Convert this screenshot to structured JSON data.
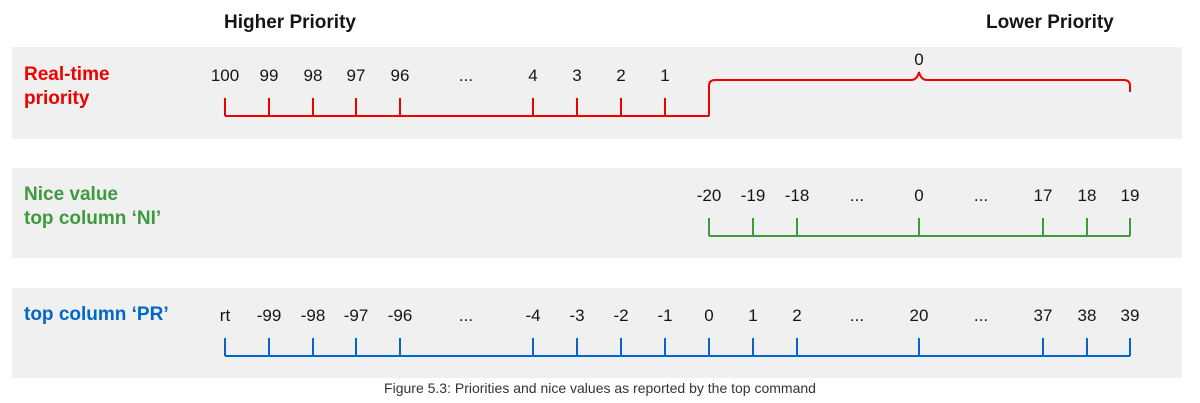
{
  "colors": {
    "realtime": "#ee0000",
    "nice": "#3e9a3e",
    "pr": "#0066cc",
    "band": "#f0f0f0"
  },
  "headers": {
    "higher": "Higher Priority",
    "lower": "Lower Priority"
  },
  "rows": {
    "realtime": {
      "label": "Real-time\npriority",
      "ticks": [
        "100",
        "99",
        "98",
        "97",
        "96",
        "...",
        "4",
        "3",
        "2",
        "1"
      ],
      "brace_label": "0"
    },
    "nice": {
      "label": "Nice value\ntop column ‘NI’",
      "ticks": [
        "-20",
        "-19",
        "-18",
        "...",
        "0",
        "...",
        "17",
        "18",
        "19"
      ]
    },
    "pr": {
      "label": "top column ‘PR’",
      "ticks": [
        "rt",
        "-99",
        "-98",
        "-97",
        "-96",
        "...",
        "-4",
        "-3",
        "-2",
        "-1",
        "0",
        "1",
        "2",
        "...",
        "20",
        "...",
        "37",
        "38",
        "39"
      ]
    }
  },
  "caption": "Figure 5.3: Priorities and nice values as reported by the top command"
}
